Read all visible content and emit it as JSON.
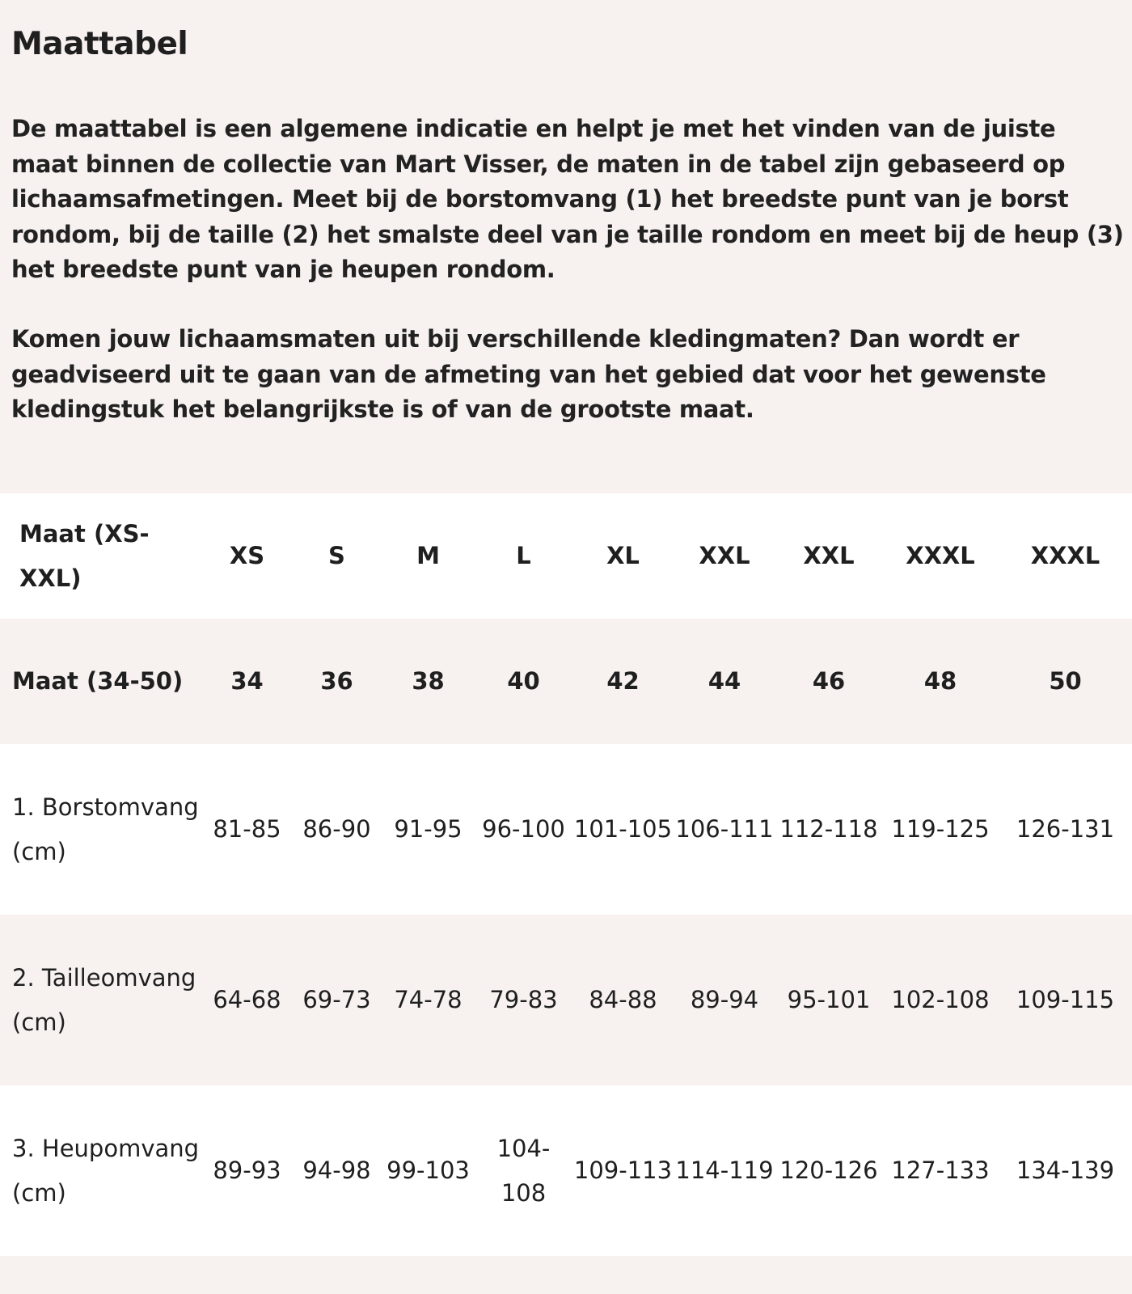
{
  "title": "Maattabel",
  "paragraphs": [
    "De maattabel is een algemene indicatie en helpt je met het vinden van de juiste maat binnen de collectie van Mart Visser, de maten in de tabel zijn gebaseerd op lichaamsafmetingen. Meet bij de borstomvang (1) het breedste punt van je borst rondom, bij de taille (2) het smalste deel van je taille rondom en meet bij de heup (3) het breedste punt van je heupen rondom.",
    "Komen jouw lichaamsmaten uit bij verschillende kledingmaten? Dan wordt er geadviseerd uit te gaan van de afmeting van het gebied dat voor het gewenste kledingstuk het belangrijkste is of van de grootste maat."
  ],
  "table": {
    "rows": [
      {
        "label": "Maat (XS-XXL)",
        "cells": [
          "XS",
          "S",
          "M",
          "L",
          "XL",
          "XXL",
          "XXL",
          "XXXL",
          "XXXL"
        ]
      },
      {
        "label": "Maat (34-50)",
        "cells": [
          "34",
          "36",
          "38",
          "40",
          "42",
          "44",
          "46",
          "48",
          "50"
        ]
      },
      {
        "label": "1. Borstomvang (cm)",
        "cells": [
          "81-85",
          "86-90",
          "91-95",
          "96-100",
          "101-105",
          "106-111",
          "112-118",
          "119-125",
          "126-131"
        ]
      },
      {
        "label": "2. Tailleomvang (cm)",
        "cells": [
          "64-68",
          "69-73",
          "74-78",
          "79-83",
          "84-88",
          "89-94",
          "95-101",
          "102-108",
          "109-115"
        ]
      },
      {
        "label": "3. Heupomvang (cm)",
        "cells": [
          "89-93",
          "94-98",
          "99-103",
          "104-108",
          "109-113",
          "114-119",
          "120-126",
          "127-133",
          "134-139"
        ]
      }
    ]
  },
  "colors": {
    "background": "#f7f1f0",
    "row_alt": "#ffffff",
    "text": "#1f1f1f"
  }
}
